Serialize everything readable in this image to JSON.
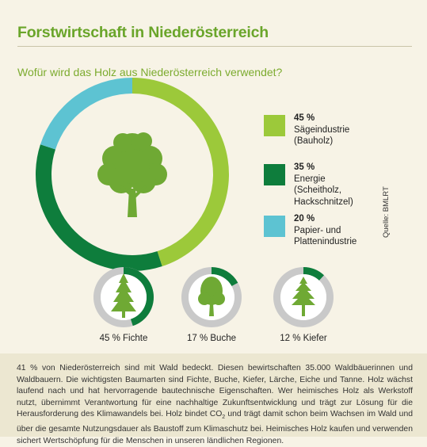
{
  "title": "Forstwirtschaft in Niederösterreich",
  "subtitle": "Wofür wird das Holz aus Niederösterreich verwendet?",
  "source": "Quelle: BMLRT",
  "colors": {
    "background": "#f7f3e6",
    "footer_background": "#ece7d1",
    "title": "#6aa52a",
    "light_green": "#9cc93a",
    "dark_green": "#0e7d3c",
    "cyan": "#5dc3d2",
    "gray_ring": "#c9c9c9",
    "tree_green": "#6fa934"
  },
  "chart_data": [
    {
      "type": "pie",
      "variant": "donut",
      "categories": [
        "Sägeindustrie (Bauholz)",
        "Energie (Scheitholz, Hackschnitzel)",
        "Papier- und Plattenindustrie"
      ],
      "values": [
        45,
        35,
        20
      ],
      "colors": [
        "#9cc93a",
        "#0e7d3c",
        "#5dc3d2"
      ],
      "center_icon": "deciduous-tree-icon",
      "legend": [
        {
          "pct": "45 %",
          "label": "Sägeindustrie\n(Bauholz)",
          "color": "#9cc93a"
        },
        {
          "pct": "35 %",
          "label": "Energie (Scheitholz,\nHackschnitzel)",
          "color": "#0e7d3c"
        },
        {
          "pct": "20 %",
          "label": "Papier- und\nPlattenindustrie",
          "color": "#5dc3d2"
        }
      ],
      "legend_placement": "right"
    },
    {
      "type": "pie",
      "variant": "donut-progress",
      "items": [
        {
          "label": "45 % Fichte",
          "value": 45,
          "icon": "spruce-tree-icon"
        },
        {
          "label": "17 % Buche",
          "value": 17,
          "icon": "beech-tree-icon"
        },
        {
          "label": "12 % Kiefer",
          "value": 12,
          "icon": "pine-tree-icon"
        }
      ]
    }
  ],
  "footer": {
    "text_before": "41 % von Niederösterreich sind mit Wald bedeckt. Diesen bewirtschaften 35.000 Waldbäuerinnen und Waldbauern. Die wichtigsten Baumarten sind Fichte, Buche, Kiefer, Lärche, Eiche und Tanne. Holz wächst laufend nach und hat hervorragende bautechnische Eigenschaften. Wer heimisches Holz als Werkstoff nutzt, übernimmt Verantwortung für eine nachhaltige Zukunftsentwicklung und trägt zur Lösung für die Herausforderung des Klimawandels bei. Holz bindet CO",
    "subscript": "2",
    "text_after": " und trägt damit schon beim Wachsen im Wald und über die gesamte Nutzungsdauer als Baustoff zum Klimaschutz bei. Heimisches Holz kaufen und verwenden sichert Wertschöpfung für die Menschen in unseren ländlichen Regionen."
  }
}
